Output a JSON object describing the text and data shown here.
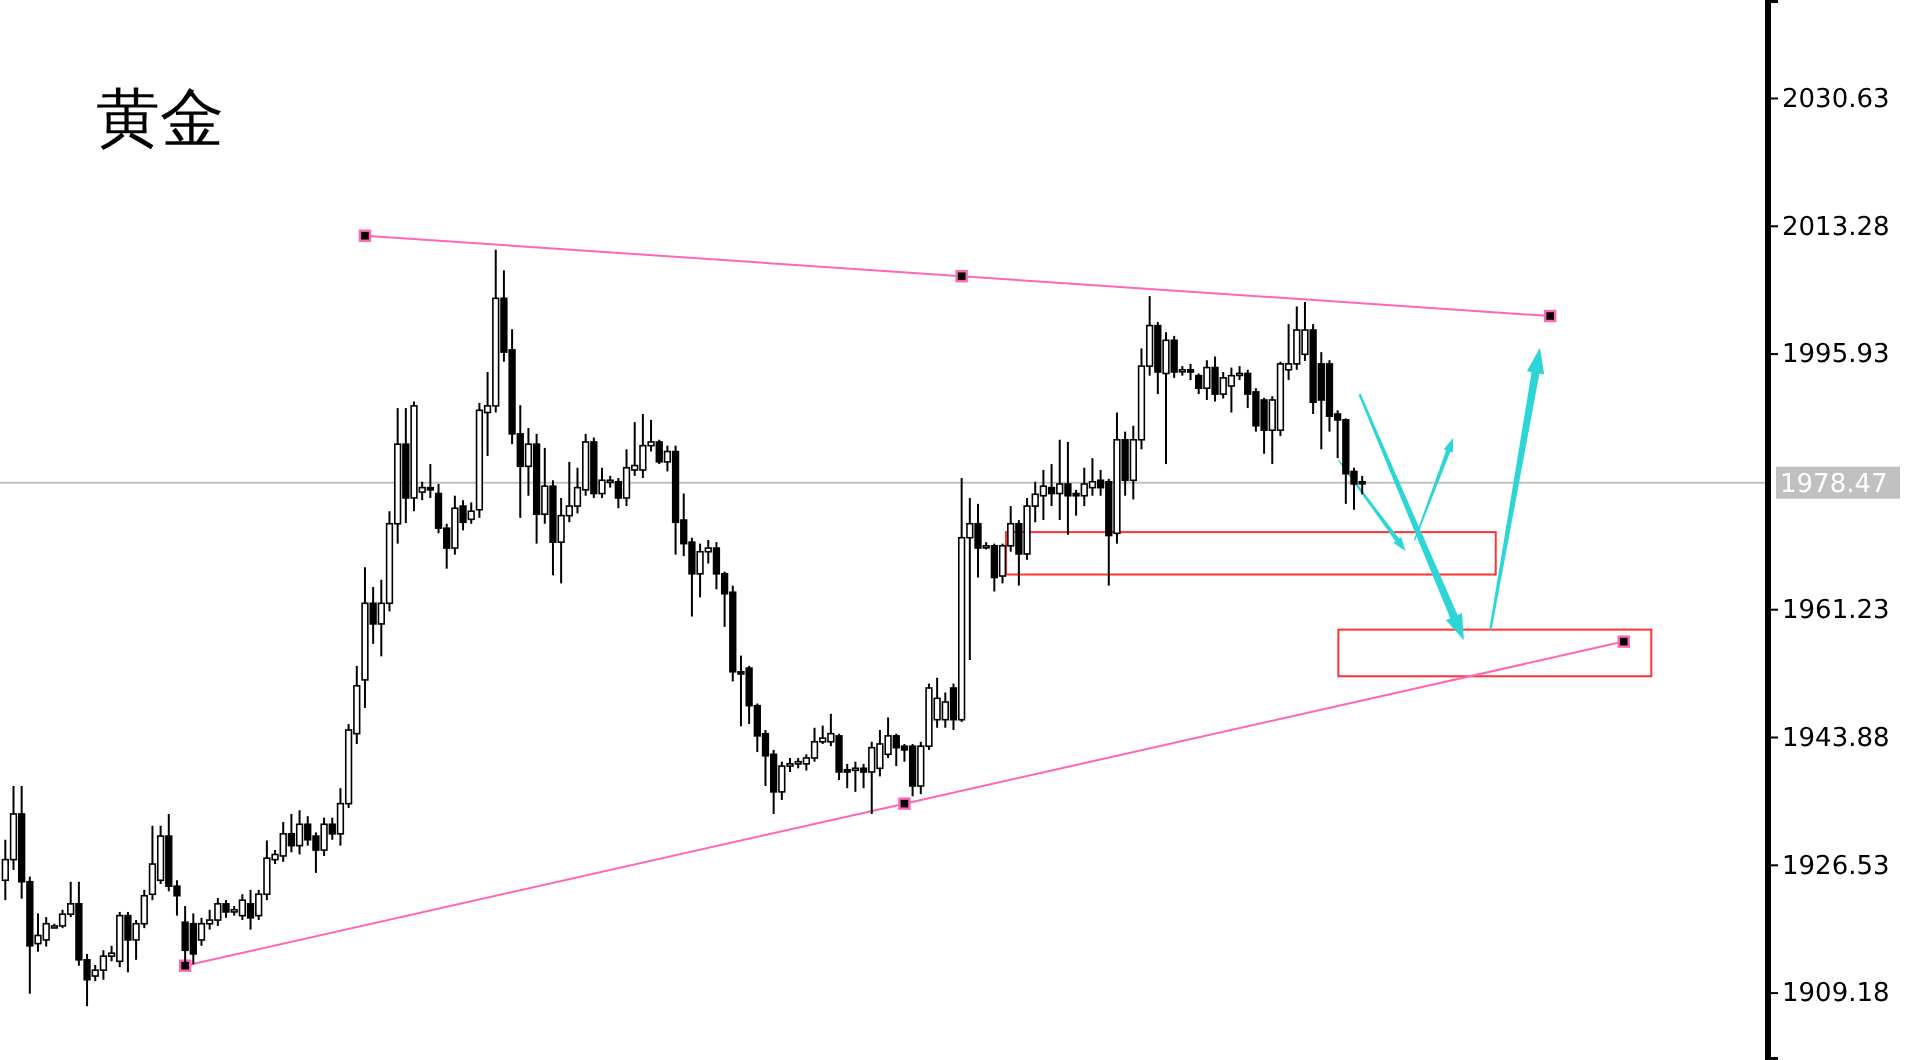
{
  "chart_data": {
    "type": "candlestick",
    "title": "黄金",
    "tick_labels": "y",
    "grid": false,
    "ylim": [
      1900.1,
      2044.0
    ],
    "yticks": [
      2030.63,
      2013.28,
      1995.93,
      1961.23,
      1943.88,
      1926.53,
      1909.18
    ],
    "ref_lines": [
      {
        "axis": "y",
        "value": 1978.47,
        "label": "1978.47",
        "color": "#c0c0c0"
      }
    ],
    "categories": [
      null,
      null,
      null,
      null,
      null,
      null,
      null,
      null,
      null,
      null,
      null,
      null,
      null,
      null,
      null,
      null,
      null,
      null,
      null,
      null,
      null,
      null,
      null,
      null,
      null,
      null,
      null,
      null,
      null,
      null,
      null,
      null,
      null,
      null,
      null,
      null,
      null,
      null,
      null,
      null,
      null,
      null,
      null,
      null,
      null,
      null,
      null,
      null,
      null,
      null,
      null,
      null,
      null,
      null,
      null,
      null,
      null,
      null,
      null,
      null,
      null,
      null,
      null,
      null,
      null,
      null,
      null,
      null,
      null,
      null,
      null,
      null,
      null,
      null,
      null,
      null,
      null,
      null,
      null,
      null,
      null,
      null,
      null,
      null,
      null,
      null,
      null,
      null,
      null,
      null,
      null,
      null,
      null,
      null,
      null,
      null,
      null,
      null,
      null,
      null,
      null,
      null,
      null,
      null,
      null,
      null,
      null,
      null,
      null,
      null,
      null,
      null,
      null,
      null,
      null,
      null,
      null,
      null,
      null,
      null,
      null,
      null,
      null,
      null,
      null,
      null,
      null,
      null,
      null,
      null,
      null,
      null,
      null,
      null,
      null,
      null,
      null,
      null,
      null,
      null,
      null,
      null,
      null,
      null,
      null,
      null,
      null,
      null,
      null,
      null,
      null,
      null,
      null,
      null,
      null,
      null,
      null,
      null,
      null,
      null,
      null,
      null,
      null,
      null,
      null,
      null,
      null,
      null,
      null,
      null,
      null,
      null,
      null,
      null,
      null,
      null,
      null,
      null,
      null,
      null,
      null,
      null,
      null,
      null,
      null,
      null,
      null,
      null,
      null,
      null,
      null,
      null,
      null,
      null,
      null,
      null,
      null,
      null,
      null,
      null,
      null,
      null,
      null,
      null,
      null,
      null,
      null,
      null,
      null,
      null,
      null,
      null,
      null,
      null,
      null,
      null
    ],
    "ohlc": [
      [
        1924.5,
        1930.0,
        1921.8,
        1927.3
      ],
      [
        1927.3,
        1937.3,
        1925.9,
        1933.5
      ],
      [
        1933.5,
        1937.3,
        1922.0,
        1924.3
      ],
      [
        1924.3,
        1925.0,
        1909.1,
        1915.6
      ],
      [
        1915.9,
        1920.0,
        1914.8,
        1917.0
      ],
      [
        1916.4,
        1919.5,
        1915.5,
        1918.6
      ],
      [
        1918.3,
        1918.6,
        1918.0,
        1918.3
      ],
      [
        1918.3,
        1920.5,
        1918.0,
        1919.9
      ],
      [
        1919.9,
        1924.3,
        1919.5,
        1921.3
      ],
      [
        1921.3,
        1924.3,
        1912.9,
        1913.7
      ],
      [
        1913.7,
        1914.5,
        1907.4,
        1911.0
      ],
      [
        1911.5,
        1913.0,
        1910.8,
        1912.3
      ],
      [
        1912.3,
        1915.0,
        1911.0,
        1914.2
      ],
      [
        1914.2,
        1915.6,
        1913.5,
        1914.6
      ],
      [
        1913.5,
        1920.2,
        1912.7,
        1919.7
      ],
      [
        1919.7,
        1920.2,
        1912.0,
        1916.4
      ],
      [
        1916.4,
        1919.1,
        1913.7,
        1918.6
      ],
      [
        1918.6,
        1923.2,
        1918.0,
        1922.4
      ],
      [
        1922.6,
        1931.9,
        1921.8,
        1926.7
      ],
      [
        1924.5,
        1931.9,
        1924.0,
        1930.5
      ],
      [
        1930.5,
        1933.5,
        1923.0,
        1923.7
      ],
      [
        1923.7,
        1924.5,
        1919.7,
        1922.4
      ],
      [
        1918.8,
        1921.0,
        1912.6,
        1915.0
      ],
      [
        1918.6,
        1920.0,
        1913.1,
        1914.5
      ],
      [
        1916.4,
        1919.4,
        1915.6,
        1918.6
      ],
      [
        1918.6,
        1920.5,
        1917.8,
        1919.1
      ],
      [
        1919.1,
        1922.1,
        1918.3,
        1921.3
      ],
      [
        1921.3,
        1921.8,
        1919.4,
        1920.2
      ],
      [
        1920.2,
        1921.0,
        1919.7,
        1920.5
      ],
      [
        1919.7,
        1922.6,
        1919.1,
        1921.8
      ],
      [
        1921.3,
        1923.2,
        1917.8,
        1919.4
      ],
      [
        1919.7,
        1923.2,
        1919.1,
        1922.6
      ],
      [
        1922.6,
        1929.9,
        1921.8,
        1927.5
      ],
      [
        1927.3,
        1928.6,
        1926.7,
        1928.0
      ],
      [
        1927.8,
        1932.4,
        1927.0,
        1930.8
      ],
      [
        1930.8,
        1933.5,
        1928.3,
        1929.2
      ],
      [
        1929.2,
        1934.0,
        1928.0,
        1932.1
      ],
      [
        1932.1,
        1933.2,
        1929.2,
        1930.0
      ],
      [
        1930.5,
        1931.0,
        1925.5,
        1928.6
      ],
      [
        1928.6,
        1933.0,
        1927.8,
        1932.1
      ],
      [
        1932.1,
        1933.0,
        1930.0,
        1930.8
      ],
      [
        1930.8,
        1937.0,
        1929.2,
        1934.9
      ],
      [
        1934.9,
        1945.7,
        1934.3,
        1944.9
      ],
      [
        1944.4,
        1953.6,
        1943.0,
        1950.9
      ],
      [
        1951.7,
        1967.0,
        1947.9,
        1962.1
      ],
      [
        1962.1,
        1964.3,
        1956.6,
        1959.3
      ],
      [
        1959.3,
        1965.3,
        1954.9,
        1962.1
      ],
      [
        1962.1,
        1974.6,
        1961.0,
        1972.9
      ],
      [
        1972.9,
        1988.6,
        1970.2,
        1983.7
      ],
      [
        1983.7,
        1988.6,
        1973.0,
        1976.4
      ],
      [
        1976.4,
        1989.5,
        1974.6,
        1988.9
      ],
      [
        1977.2,
        1978.6,
        1976.1,
        1977.8
      ],
      [
        1977.8,
        1981.0,
        1976.4,
        1977.5
      ],
      [
        1977.0,
        1978.3,
        1971.6,
        1972.3
      ],
      [
        1972.3,
        1972.9,
        1966.8,
        1969.6
      ],
      [
        1969.6,
        1976.7,
        1968.7,
        1975.0
      ],
      [
        1975.3,
        1976.1,
        1972.0,
        1973.1
      ],
      [
        1973.5,
        1975.8,
        1972.9,
        1974.6
      ],
      [
        1974.8,
        1989.3,
        1973.7,
        1988.3
      ],
      [
        1988.0,
        1993.5,
        1982.1,
        1988.9
      ],
      [
        1988.9,
        2010.1,
        1988.0,
        2003.5
      ],
      [
        2003.5,
        2007.3,
        1994.9,
        1996.2
      ],
      [
        1996.5,
        1999.3,
        1983.7,
        1985.1
      ],
      [
        1985.1,
        1989.0,
        1973.7,
        1980.7
      ],
      [
        1980.7,
        1985.9,
        1976.7,
        1983.7
      ],
      [
        1983.7,
        1985.1,
        1970.2,
        1974.2
      ],
      [
        1974.2,
        1983.2,
        1972.9,
        1978.0
      ],
      [
        1978.0,
        1978.8,
        1965.9,
        1970.4
      ],
      [
        1970.4,
        1976.4,
        1964.8,
        1974.0
      ],
      [
        1974.0,
        1981.3,
        1973.1,
        1975.3
      ],
      [
        1975.3,
        1980.5,
        1974.3,
        1977.8
      ],
      [
        1977.5,
        1985.1,
        1976.7,
        1984.0
      ],
      [
        1984.0,
        1984.6,
        1976.4,
        1977.0
      ],
      [
        1977.0,
        1980.5,
        1976.4,
        1978.8
      ],
      [
        1978.6,
        1979.4,
        1977.8,
        1978.8
      ],
      [
        1978.6,
        1979.1,
        1975.0,
        1976.4
      ],
      [
        1976.4,
        1983.0,
        1975.3,
        1980.5
      ],
      [
        1980.2,
        1986.7,
        1979.4,
        1980.8
      ],
      [
        1980.2,
        1987.8,
        1979.1,
        1983.5
      ],
      [
        1983.5,
        1987.0,
        1982.7,
        1984.0
      ],
      [
        1984.0,
        1984.3,
        1981.0,
        1981.3
      ],
      [
        1981.3,
        1983.5,
        1980.0,
        1982.7
      ],
      [
        1982.7,
        1983.5,
        1968.7,
        1973.1
      ],
      [
        1973.4,
        1977.0,
        1968.5,
        1970.2
      ],
      [
        1970.4,
        1971.0,
        1960.3,
        1966.1
      ],
      [
        1966.1,
        1970.2,
        1962.9,
        1969.1
      ],
      [
        1969.1,
        1970.7,
        1967.5,
        1969.6
      ],
      [
        1969.6,
        1970.4,
        1964.0,
        1966.1
      ],
      [
        1966.1,
        1966.4,
        1958.9,
        1963.4
      ],
      [
        1963.6,
        1964.5,
        1951.5,
        1952.8
      ],
      [
        1952.8,
        1955.0,
        1945.4,
        1952.5
      ],
      [
        1953.3,
        1953.6,
        1945.7,
        1948.2
      ],
      [
        1948.2,
        1948.5,
        1941.9,
        1944.1
      ],
      [
        1944.4,
        1944.9,
        1937.3,
        1941.4
      ],
      [
        1941.6,
        1942.2,
        1933.5,
        1936.5
      ],
      [
        1936.5,
        1940.6,
        1935.4,
        1940.0
      ],
      [
        1940.0,
        1941.1,
        1939.2,
        1940.3
      ],
      [
        1940.3,
        1941.1,
        1939.7,
        1940.6
      ],
      [
        1940.3,
        1941.6,
        1939.4,
        1941.1
      ],
      [
        1941.1,
        1945.2,
        1940.6,
        1943.3
      ],
      [
        1943.3,
        1945.5,
        1943.0,
        1943.8
      ],
      [
        1943.3,
        1947.1,
        1942.7,
        1944.4
      ],
      [
        1944.1,
        1944.4,
        1938.1,
        1939.2
      ],
      [
        1939.5,
        1940.3,
        1937.0,
        1939.2
      ],
      [
        1939.5,
        1940.6,
        1936.5,
        1939.7
      ],
      [
        1939.7,
        1940.3,
        1937.0,
        1939.2
      ],
      [
        1939.2,
        1943.3,
        1933.5,
        1942.5
      ],
      [
        1939.7,
        1944.9,
        1938.6,
        1943.0
      ],
      [
        1941.6,
        1946.6,
        1941.1,
        1944.1
      ],
      [
        1944.1,
        1944.4,
        1940.0,
        1942.5
      ],
      [
        1942.7,
        1943.0,
        1940.6,
        1942.2
      ],
      [
        1942.7,
        1943.0,
        1935.9,
        1937.3
      ],
      [
        1937.3,
        1943.3,
        1936.2,
        1942.7
      ],
      [
        1942.7,
        1951.2,
        1942.2,
        1950.6
      ],
      [
        1946.3,
        1952.0,
        1945.2,
        1949.2
      ],
      [
        1946.3,
        1950.0,
        1945.2,
        1948.7
      ],
      [
        1950.6,
        1951.2,
        1944.9,
        1946.3
      ],
      [
        1946.3,
        1979.1,
        1946.0,
        1971.0
      ],
      [
        1971.0,
        1976.4,
        1954.4,
        1972.9
      ],
      [
        1972.9,
        1975.6,
        1965.6,
        1969.6
      ],
      [
        1969.9,
        1970.4,
        1969.4,
        1969.9
      ],
      [
        1969.9,
        1970.2,
        1963.7,
        1965.6
      ],
      [
        1965.8,
        1970.2,
        1964.8,
        1969.9
      ],
      [
        1969.9,
        1975.3,
        1969.1,
        1972.9
      ],
      [
        1972.9,
        1973.4,
        1964.5,
        1968.8
      ],
      [
        1968.8,
        1976.4,
        1968.0,
        1975.3
      ],
      [
        1975.3,
        1978.6,
        1973.1,
        1976.9
      ],
      [
        1976.7,
        1980.2,
        1973.4,
        1978.0
      ],
      [
        1977.8,
        1981.0,
        1975.3,
        1977.0
      ],
      [
        1977.0,
        1984.3,
        1973.4,
        1978.3
      ],
      [
        1978.3,
        1984.0,
        1971.4,
        1976.7
      ],
      [
        1977.0,
        1977.5,
        1974.0,
        1976.7
      ],
      [
        1976.7,
        1980.5,
        1975.3,
        1978.3
      ],
      [
        1977.8,
        1981.8,
        1976.7,
        1978.6
      ],
      [
        1978.8,
        1980.2,
        1976.7,
        1977.8
      ],
      [
        1978.6,
        1979.0,
        1964.5,
        1971.3
      ],
      [
        1971.6,
        1988.0,
        1970.2,
        1984.3
      ],
      [
        1984.3,
        1985.4,
        1976.7,
        1978.8
      ],
      [
        1978.8,
        1986.2,
        1976.2,
        1984.3
      ],
      [
        1984.3,
        1996.7,
        1983.0,
        1994.3
      ],
      [
        1994.3,
        2003.8,
        1993.0,
        1999.8
      ],
      [
        1999.8,
        2000.3,
        1990.5,
        1993.5
      ],
      [
        1993.3,
        1998.9,
        1981.0,
        1997.8
      ],
      [
        1997.8,
        1998.4,
        1992.7,
        1993.5
      ],
      [
        1993.8,
        1994.3,
        1993.0,
        1993.8
      ],
      [
        1993.8,
        1994.6,
        1992.4,
        1993.5
      ],
      [
        1993.0,
        1993.3,
        1990.5,
        1991.3
      ],
      [
        1991.3,
        1995.1,
        1989.7,
        1994.1
      ],
      [
        1994.1,
        1995.6,
        1989.5,
        1990.5
      ],
      [
        1990.5,
        1993.5,
        1989.9,
        1992.7
      ],
      [
        1991.6,
        1994.1,
        1988.0,
        1993.0
      ],
      [
        1993.3,
        1994.3,
        1992.4,
        1993.3
      ],
      [
        1993.3,
        1993.8,
        1988.6,
        1990.5
      ],
      [
        1990.8,
        1991.3,
        1985.4,
        1986.2
      ],
      [
        1989.7,
        1990.0,
        1982.4,
        1985.6
      ],
      [
        1985.6,
        1990.2,
        1981.0,
        1989.7
      ],
      [
        1985.6,
        1994.9,
        1984.8,
        1994.6
      ],
      [
        1993.8,
        2000.0,
        1992.4,
        1994.6
      ],
      [
        1994.6,
        2002.4,
        1993.8,
        1999.2
      ],
      [
        1995.9,
        2003.0,
        1995.0,
        1999.2
      ],
      [
        1999.2,
        2000.0,
        1987.8,
        1989.4
      ],
      [
        1994.6,
        1996.2,
        1983.0,
        1989.7
      ],
      [
        1994.6,
        1995.1,
        1985.4,
        1987.5
      ],
      [
        1987.8,
        1988.3,
        1981.8,
        1987.0
      ],
      [
        1987.0,
        1987.2,
        1975.6,
        1979.7
      ],
      [
        1980.0,
        1980.5,
        1974.8,
        1978.3
      ],
      [
        1978.6,
        1979.4,
        1976.9,
        1978.47
      ],
      null,
      null,
      null,
      null,
      null,
      null,
      null,
      null,
      null,
      null,
      null,
      null,
      null,
      null,
      null,
      null,
      null,
      null,
      null,
      null,
      null,
      null,
      null,
      null,
      null,
      null,
      null,
      null,
      null,
      null,
      null,
      null,
      null,
      null,
      null,
      null,
      null,
      null,
      null,
      null,
      null,
      null,
      null,
      null,
      null,
      null,
      null,
      null,
      null
    ],
    "series": [
      {
        "type": "line",
        "color": "#ff66b3",
        "marker": "square",
        "values": [
          null,
          null,
          null,
          null,
          null,
          null,
          null,
          null,
          null,
          null,
          null,
          null,
          null,
          null,
          null,
          null,
          null,
          null,
          null,
          null,
          null,
          null,
          null,
          null,
          null,
          null,
          null,
          null,
          null,
          null,
          null,
          null,
          null,
          null,
          null,
          null,
          null,
          null,
          null,
          null,
          null,
          null,
          null,
          null,
          2012.0,
          null,
          null,
          null,
          null,
          null,
          null,
          null,
          null,
          null,
          null,
          null,
          null,
          null,
          null,
          null,
          null,
          null,
          null,
          null,
          null,
          null,
          null,
          null,
          null,
          null,
          null,
          null,
          null,
          null,
          null,
          null,
          null,
          null,
          null,
          null,
          null,
          null,
          null,
          null,
          null,
          null,
          null,
          null,
          null,
          null,
          null,
          null,
          null,
          null,
          null,
          null,
          null,
          null,
          null,
          null,
          null,
          null,
          null,
          null,
          null,
          null,
          null,
          null,
          null,
          null,
          null,
          null,
          null,
          null,
          null,
          null,
          null,
          2006.5,
          null,
          null,
          null,
          null,
          null,
          null,
          null,
          null,
          null,
          null,
          null,
          null,
          null,
          null,
          null,
          null,
          null,
          null,
          null,
          null,
          null,
          null,
          null,
          null,
          null,
          null,
          null,
          null,
          null,
          null,
          null,
          null,
          null,
          null,
          null,
          null,
          null,
          null,
          null,
          null,
          null,
          null,
          null,
          null,
          null,
          null,
          null,
          null,
          null,
          null,
          null,
          null,
          null,
          null,
          null,
          null,
          null,
          null,
          null,
          null,
          null,
          null,
          null,
          null,
          null,
          null,
          null,
          null,
          null,
          null,
          null,
          2001.1,
          null,
          null,
          null,
          null,
          null,
          null,
          null,
          null,
          null,
          null,
          null,
          null,
          null,
          null,
          null,
          null,
          null,
          null,
          null,
          null,
          null,
          null,
          null,
          null,
          null,
          null
        ]
      },
      {
        "type": "line",
        "color": "#ff66b3",
        "marker": "square",
        "values": [
          null,
          null,
          null,
          null,
          null,
          null,
          null,
          null,
          null,
          null,
          null,
          null,
          null,
          null,
          null,
          null,
          null,
          null,
          null,
          null,
          null,
          null,
          1912.9,
          null,
          null,
          null,
          null,
          null,
          null,
          null,
          null,
          null,
          null,
          null,
          null,
          null,
          null,
          null,
          null,
          null,
          null,
          null,
          null,
          null,
          null,
          null,
          null,
          null,
          null,
          null,
          null,
          null,
          null,
          null,
          null,
          null,
          null,
          null,
          null,
          null,
          null,
          null,
          null,
          null,
          null,
          null,
          null,
          null,
          null,
          null,
          null,
          null,
          null,
          null,
          null,
          null,
          null,
          null,
          null,
          null,
          null,
          null,
          null,
          null,
          null,
          null,
          null,
          null,
          null,
          null,
          null,
          null,
          null,
          null,
          null,
          null,
          null,
          null,
          null,
          null,
          null,
          null,
          null,
          null,
          null,
          null,
          null,
          null,
          null,
          null,
          1934.9,
          null,
          null,
          null,
          null,
          null,
          null,
          null,
          null,
          null,
          null,
          null,
          null,
          null,
          null,
          null,
          null,
          null,
          null,
          null,
          null,
          null,
          null,
          null,
          null,
          null,
          null,
          null,
          null,
          null,
          null,
          null,
          null,
          null,
          null,
          null,
          null,
          null,
          null,
          null,
          null,
          null,
          null,
          null,
          null,
          null,
          null,
          null,
          null,
          null,
          null,
          null,
          null,
          null,
          null,
          null,
          null,
          null,
          null,
          null,
          null,
          null,
          null,
          null,
          null,
          null,
          null,
          null,
          null,
          null,
          null,
          null,
          null,
          null,
          null,
          null,
          null,
          null,
          null,
          null,
          null,
          null,
          null,
          null,
          null,
          null,
          null,
          null,
          1956.9,
          null,
          null,
          null,
          null,
          null,
          null,
          null,
          null,
          null,
          null,
          null,
          null,
          null,
          null,
          null,
          null,
          null
        ]
      }
    ]
  }
}
